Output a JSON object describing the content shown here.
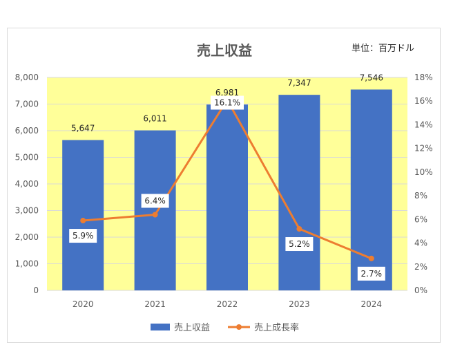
{
  "chart_data": {
    "type": "bar+line",
    "title": "売上収益",
    "unit_label": "単位：百万ドル",
    "categories": [
      "2020",
      "2021",
      "2022",
      "2023",
      "2024"
    ],
    "series": [
      {
        "name": "売上収益",
        "type": "bar",
        "axis": "left",
        "color": "#4472C4",
        "values": [
          5647,
          6011,
          6981,
          7347,
          7546
        ],
        "labels": [
          "5,647",
          "6,011",
          "6,981",
          "7,347",
          "7,546"
        ]
      },
      {
        "name": "売上成長率",
        "type": "line",
        "axis": "right",
        "color": "#ED7D31",
        "values": [
          5.9,
          6.4,
          16.1,
          5.2,
          2.7
        ],
        "labels": [
          "5.9%",
          "6.4%",
          "16.1%",
          "5.2%",
          "2.7%"
        ]
      }
    ],
    "y_left": {
      "min": 0,
      "max": 8000,
      "ticks": [
        "0",
        "1,000",
        "2,000",
        "3,000",
        "4,000",
        "5,000",
        "6,000",
        "7,000",
        "8,000"
      ]
    },
    "y_right": {
      "min": 0,
      "max": 18,
      "ticks": [
        "0%",
        "2%",
        "4%",
        "6%",
        "8%",
        "10%",
        "12%",
        "14%",
        "16%",
        "18%"
      ]
    },
    "plot_background": "#FFFF99",
    "grid": true,
    "legend_position": "bottom"
  }
}
